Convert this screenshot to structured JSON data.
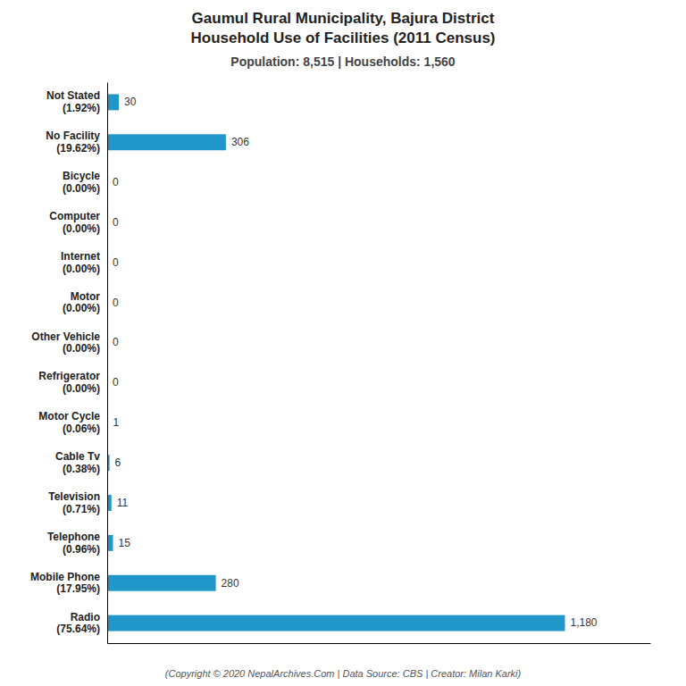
{
  "chart_data": {
    "type": "bar",
    "orientation": "horizontal",
    "title": [
      "Gaumul Rural Municipality, Bajura District",
      "Household Use of Facilities (2011 Census)"
    ],
    "subtitle": "Population: 8,515 | Households: 1,560",
    "footer": "(Copyright © 2020 NepalArchives.Com | Data Source: CBS | Creator: Milan Karki)",
    "categories": [
      "Not Stated\n(1.92%)",
      "No Facility\n(19.62%)",
      "Bicycle\n(0.00%)",
      "Computer\n(0.00%)",
      "Internet\n(0.00%)",
      "Motor\n(0.00%)",
      "Other Vehicle\n(0.00%)",
      "Refrigerator\n(0.00%)",
      "Motor Cycle\n(0.06%)",
      "Cable Tv\n(0.38%)",
      "Television\n(0.71%)",
      "Telephone\n(0.96%)",
      "Mobile Phone\n(17.95%)",
      "Radio\n(75.64%)"
    ],
    "values": [
      30,
      306,
      0,
      0,
      0,
      0,
      0,
      0,
      1,
      6,
      11,
      15,
      280,
      1180
    ],
    "value_labels": [
      "30",
      "306",
      "0",
      "0",
      "0",
      "0",
      "0",
      "0",
      "1",
      "6",
      "11",
      "15",
      "280",
      "1,180"
    ],
    "data_labels": true,
    "color": "#2196c8",
    "xlim": [
      0,
      1400
    ],
    "tick_labels": "y",
    "grid": false
  }
}
